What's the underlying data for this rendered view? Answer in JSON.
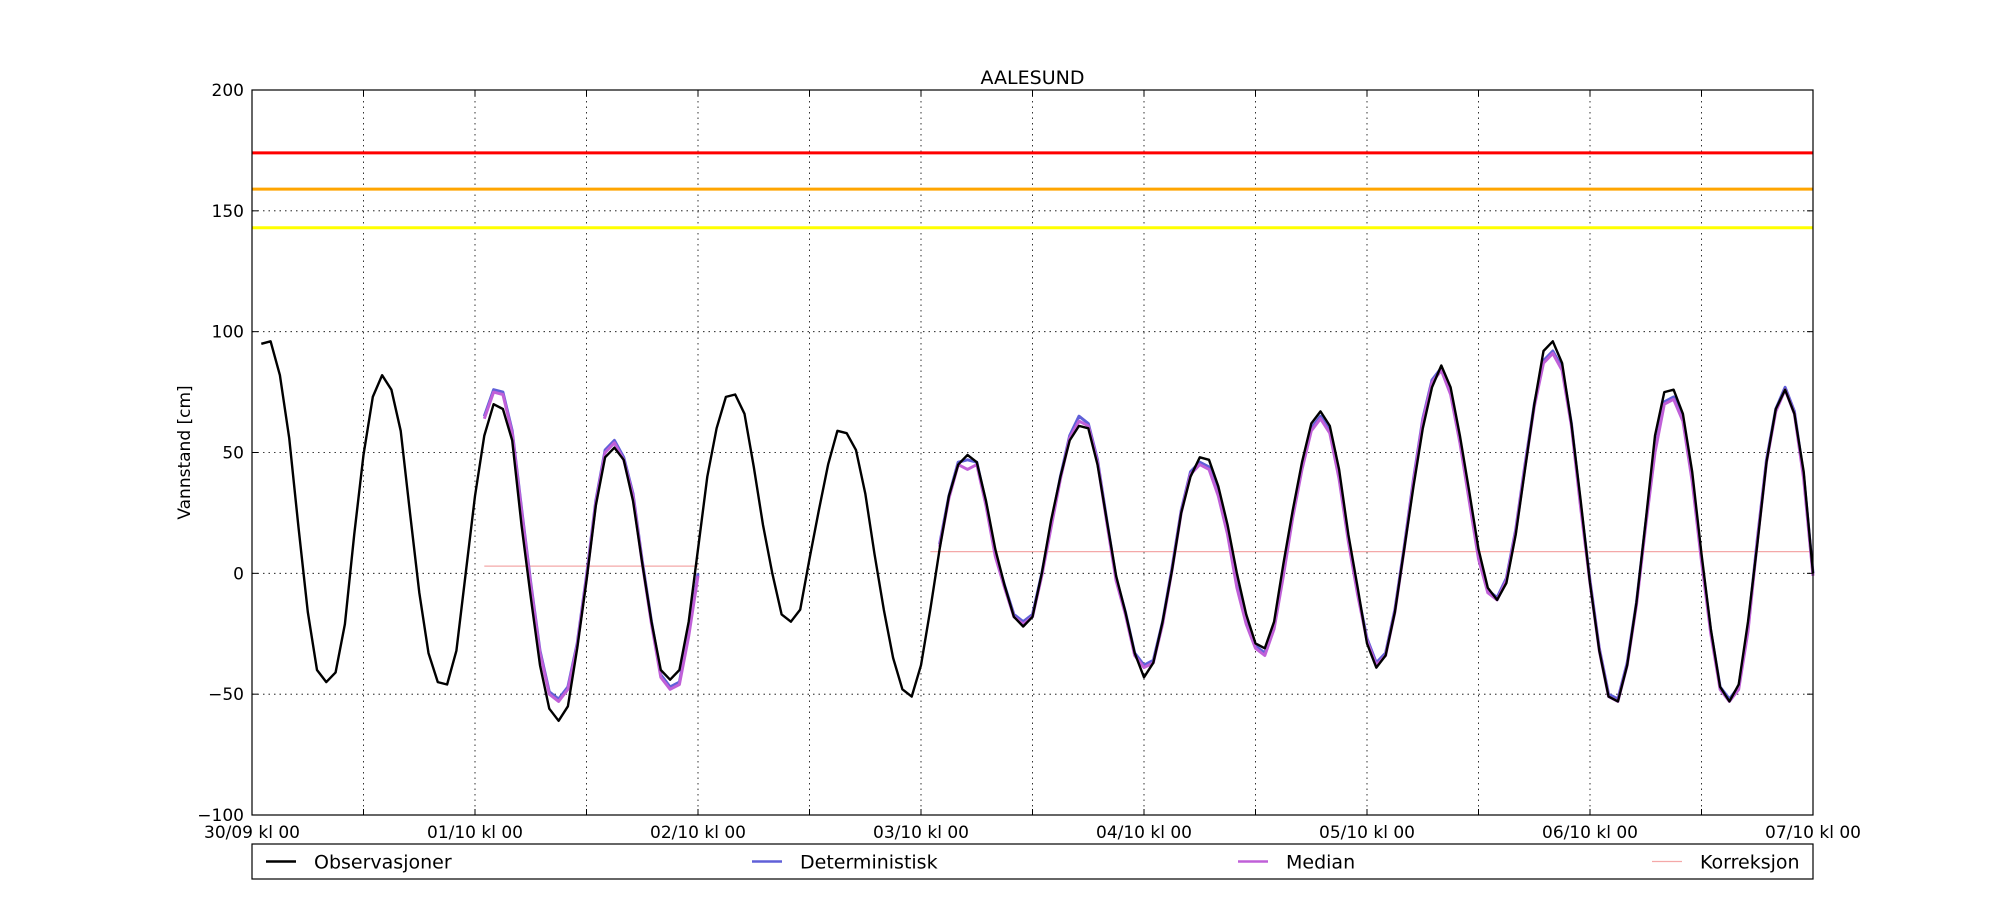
{
  "chart_data": {
    "type": "line",
    "title": "AALESUND",
    "xlabel": "",
    "ylabel": "Vannstand [cm]",
    "xlim": [
      0,
      168
    ],
    "ylim": [
      -100,
      200
    ],
    "yticks": [
      -100,
      -50,
      0,
      50,
      100,
      150,
      200
    ],
    "xticks": [
      {
        "x": 0,
        "label": "30/09 kl 00"
      },
      {
        "x": 24,
        "label": "01/10 kl 00"
      },
      {
        "x": 48,
        "label": "02/10 kl 00"
      },
      {
        "x": 72,
        "label": "03/10 kl 00"
      },
      {
        "x": 96,
        "label": "04/10 kl 00"
      },
      {
        "x": 120,
        "label": "05/10 kl 00"
      },
      {
        "x": 144,
        "label": "06/10 kl 00"
      },
      {
        "x": 168,
        "label": "07/10 kl 00"
      }
    ],
    "x_unit_note": "",
    "grid": true,
    "legend_position": "bottom",
    "thresholds": [
      {
        "value": 174,
        "color": "#ff0000"
      },
      {
        "value": 159,
        "color": "#ffa500"
      },
      {
        "value": 143,
        "color": "#ffff00"
      }
    ],
    "series": [
      {
        "name": "Observasjoner",
        "color": "#000000",
        "x": [
          1,
          2,
          3,
          4,
          5,
          6,
          7,
          8,
          9,
          10,
          11,
          12,
          13,
          14,
          15,
          16,
          17,
          18,
          19,
          20,
          21,
          22,
          23,
          24,
          25,
          26,
          27,
          28,
          29,
          30,
          31,
          32,
          33,
          34,
          35,
          36,
          37,
          38,
          39,
          40,
          41,
          42,
          43,
          44,
          45,
          46,
          47,
          48,
          49,
          50,
          51,
          52,
          53,
          54,
          55,
          56,
          57,
          58,
          59,
          60,
          61,
          62,
          63,
          64,
          65,
          66,
          67,
          68,
          69,
          70,
          71,
          72,
          73,
          74,
          75,
          76,
          77,
          78,
          79,
          80,
          81,
          82,
          83,
          84,
          85,
          86,
          87,
          88,
          89,
          90,
          91,
          92,
          93,
          94,
          95,
          96,
          97,
          98,
          99,
          100,
          101,
          102,
          103,
          104,
          105,
          106,
          107,
          108,
          109,
          110,
          111,
          112,
          113,
          114,
          115,
          116,
          117,
          118,
          119,
          120,
          121,
          122,
          123,
          124,
          125,
          126,
          127,
          128,
          129,
          130,
          131,
          132,
          133,
          134,
          135,
          136,
          137,
          138,
          139,
          140,
          141,
          142,
          143,
          144,
          145,
          146,
          147,
          148,
          149,
          150,
          151,
          152,
          153,
          154,
          155,
          156,
          157,
          158,
          159,
          160,
          161,
          162,
          163,
          164,
          165,
          166,
          167,
          168
        ],
        "values": [
          95,
          96,
          82,
          56,
          19,
          -16,
          -40,
          -45,
          -41,
          -21,
          16,
          49,
          73,
          82,
          76,
          59,
          25,
          -8,
          -33,
          -45,
          -46,
          -32,
          0,
          32,
          57,
          70,
          68,
          55,
          20,
          -10,
          -38,
          -56,
          -61,
          -55,
          -31,
          -3,
          28,
          48,
          52,
          47,
          30,
          4,
          -20,
          -40,
          -44,
          -40,
          -20,
          10,
          40,
          60,
          73,
          74,
          66,
          44,
          20,
          0,
          -17,
          -20,
          -15,
          6,
          26,
          45,
          59,
          58,
          51,
          33,
          8,
          -15,
          -35,
          -48,
          -51,
          -38,
          -15,
          10,
          32,
          45,
          49,
          46,
          30,
          10,
          -5,
          -18,
          -22,
          -18,
          0,
          22,
          40,
          55,
          61,
          60,
          45,
          22,
          -1,
          -16,
          -33,
          -43,
          -37,
          -20,
          1,
          25,
          40,
          48,
          47,
          36,
          20,
          0,
          -17,
          -29,
          -31,
          -20,
          4,
          26,
          46,
          62,
          67,
          61,
          43,
          16,
          -6,
          -29,
          -39,
          -34,
          -16,
          10,
          36,
          60,
          77,
          86,
          77,
          57,
          34,
          10,
          -6,
          -11,
          -4,
          16,
          43,
          70,
          92,
          96,
          87,
          62,
          30,
          -4,
          -32,
          -51,
          -53,
          -38,
          -12,
          22,
          57,
          75,
          76,
          66,
          42,
          8,
          -23,
          -47,
          -53,
          -46,
          -20,
          12,
          46,
          68,
          76,
          66,
          42,
          0
        ]
      },
      {
        "name": "Deterministisk",
        "color": "#6060d8",
        "segments": [
          {
            "x": [
              25,
              26,
              27,
              28,
              29,
              30,
              31,
              32,
              33,
              34,
              35,
              36,
              37,
              38,
              39,
              40,
              41,
              42,
              43,
              44,
              45,
              46,
              47,
              48
            ],
            "values": [
              65,
              76,
              75,
              59,
              27,
              -4,
              -32,
              -49,
              -52,
              -47,
              -29,
              -1,
              30,
              51,
              55,
              48,
              33,
              5,
              -20,
              -42,
              -47,
              -45,
              -25,
              0
            ]
          },
          {
            "x": [
              74,
              75,
              76,
              77,
              78,
              79,
              80,
              81,
              82,
              83,
              84,
              85,
              86,
              87,
              88,
              89,
              90,
              91,
              92,
              93,
              94,
              95,
              96,
              97,
              98,
              99,
              100,
              101,
              102,
              103,
              104,
              105,
              106,
              107,
              108,
              109,
              110,
              111,
              112,
              113,
              114,
              115,
              116,
              117,
              118,
              119,
              120,
              121,
              122,
              123,
              124,
              125,
              126,
              127,
              128,
              129,
              130,
              131,
              132,
              133,
              134,
              135,
              136,
              137,
              138,
              139,
              140,
              141,
              142,
              143,
              144,
              145,
              146,
              147,
              148,
              149,
              150,
              151,
              152,
              153,
              154,
              155,
              156,
              157,
              158,
              159,
              160,
              161,
              162,
              163,
              164,
              165,
              166,
              167,
              168
            ],
            "values": [
              12,
              32,
              46,
              47,
              46,
              29,
              8,
              -5,
              -17,
              -20,
              -17,
              0,
              20,
              40,
              57,
              65,
              62,
              47,
              22,
              -2,
              -16,
              -33,
              -38,
              -36,
              -20,
              2,
              26,
              42,
              46,
              44,
              33,
              17,
              -5,
              -20,
              -30,
              -33,
              -22,
              0,
              24,
              44,
              60,
              65,
              59,
              40,
              14,
              -8,
              -27,
              -37,
              -33,
              -15,
              11,
              39,
              64,
              80,
              85,
              75,
              55,
              31,
              7,
              -7,
              -10,
              -2,
              18,
              45,
              70,
              88,
              92,
              85,
              62,
              28,
              -3,
              -31,
              -50,
              -52,
              -37,
              -12,
              21,
              51,
              71,
              73,
              64,
              39,
              6,
              -24,
              -47,
              -52,
              -47,
              -23,
              14,
              47,
              68,
              77,
              67,
              40,
              0
            ]
          }
        ]
      },
      {
        "name": "Median",
        "color": "#c060d8",
        "segments": [
          {
            "x": [
              25,
              26,
              27,
              28,
              29,
              30,
              31,
              32,
              33,
              34,
              35,
              36,
              37,
              38,
              39,
              40,
              41,
              42,
              43,
              44,
              45,
              46,
              47,
              48
            ],
            "values": [
              64,
              75,
              74,
              58,
              26,
              -5,
              -33,
              -50,
              -53,
              -48,
              -30,
              -2,
              29,
              50,
              54,
              47,
              32,
              4,
              -21,
              -43,
              -48,
              -46,
              -26,
              -1
            ]
          },
          {
            "x": [
              74,
              75,
              76,
              77,
              78,
              79,
              80,
              81,
              82,
              83,
              84,
              85,
              86,
              87,
              88,
              89,
              90,
              91,
              92,
              93,
              94,
              95,
              96,
              97,
              98,
              99,
              100,
              101,
              102,
              103,
              104,
              105,
              106,
              107,
              108,
              109,
              110,
              111,
              112,
              113,
              114,
              115,
              116,
              117,
              118,
              119,
              120,
              121,
              122,
              123,
              124,
              125,
              126,
              127,
              128,
              129,
              130,
              131,
              132,
              133,
              134,
              135,
              136,
              137,
              138,
              139,
              140,
              141,
              142,
              143,
              144,
              145,
              146,
              147,
              148,
              149,
              150,
              151,
              152,
              153,
              154,
              155,
              156,
              157,
              158,
              159,
              160,
              161,
              162,
              163,
              164,
              165,
              166,
              167,
              168
            ],
            "values": [
              11,
              31,
              45,
              43,
              45,
              28,
              7,
              -6,
              -18,
              -21,
              -18,
              -1,
              19,
              39,
              56,
              63,
              61,
              46,
              21,
              -3,
              -17,
              -34,
              -39,
              -37,
              -21,
              1,
              25,
              41,
              45,
              43,
              32,
              16,
              -6,
              -21,
              -31,
              -34,
              -23,
              -1,
              23,
              43,
              59,
              64,
              58,
              39,
              13,
              -9,
              -28,
              -38,
              -34,
              -16,
              10,
              38,
              63,
              79,
              84,
              74,
              54,
              30,
              6,
              -8,
              -11,
              -3,
              17,
              44,
              69,
              87,
              91,
              84,
              61,
              27,
              -4,
              -32,
              -51,
              -53,
              -38,
              -13,
              20,
              50,
              70,
              72,
              63,
              38,
              5,
              -25,
              -48,
              -53,
              -48,
              -24,
              13,
              46,
              67,
              76,
              66,
              39,
              -1
            ]
          }
        ]
      },
      {
        "name": "Korreksjon",
        "color": "#f4a8a8",
        "segments": [
          {
            "x": [
              25,
              36,
              48
            ],
            "values": [
              3,
              3,
              3
            ]
          },
          {
            "x": [
              73,
              96,
              120,
              144,
              168
            ],
            "values": [
              9,
              9,
              9,
              9,
              9
            ]
          }
        ]
      }
    ]
  }
}
